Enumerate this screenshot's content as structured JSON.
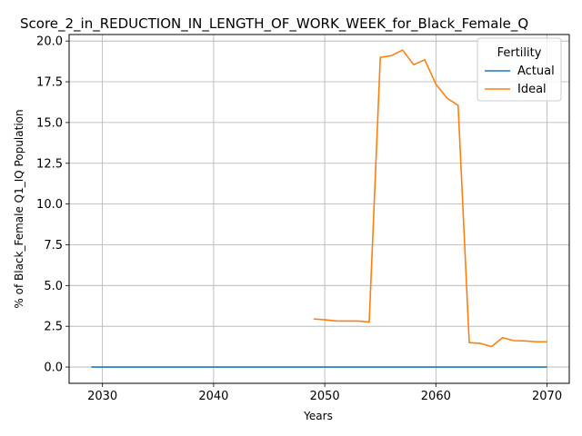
{
  "chart_data": {
    "type": "line",
    "title": "Score_2_in_REDUCTION_IN_LENGTH_OF_WORK_WEEK_for_Black_Female_Q",
    "xlabel": "Years",
    "ylabel": "% of Black_Female Q1_IQ Population",
    "xlim": [
      2027,
      2072
    ],
    "ylim": [
      -1.0,
      20.4
    ],
    "x_ticks": [
      2030,
      2040,
      2050,
      2060,
      2070
    ],
    "x_tick_labels": [
      "2030",
      "2040",
      "2050",
      "2060",
      "2070"
    ],
    "y_ticks": [
      0.0,
      2.5,
      5.0,
      7.5,
      10.0,
      12.5,
      15.0,
      17.5,
      20.0
    ],
    "y_tick_labels": [
      "0.0",
      "2.5",
      "5.0",
      "7.5",
      "10.0",
      "12.5",
      "15.0",
      "17.5",
      "20.0"
    ],
    "grid": true,
    "legend": {
      "title": "Fertility",
      "placement": "top-right"
    },
    "series": [
      {
        "name": "Actual",
        "color": "#1f77b4",
        "x": [
          2029,
          2070
        ],
        "y": [
          0.0,
          0.0
        ]
      },
      {
        "name": "Ideal",
        "color": "#ff7f0e",
        "x": [
          2049,
          2050,
          2051,
          2052,
          2053,
          2054,
          2055,
          2056,
          2057,
          2058,
          2059,
          2060,
          2061,
          2062,
          2063,
          2064,
          2065,
          2066,
          2067,
          2068,
          2069,
          2070
        ],
        "y": [
          2.95,
          2.9,
          2.83,
          2.82,
          2.82,
          2.76,
          19.0,
          19.1,
          19.45,
          18.55,
          18.85,
          17.35,
          16.5,
          16.05,
          1.5,
          1.45,
          1.25,
          1.8,
          1.62,
          1.6,
          1.55,
          1.55
        ]
      }
    ]
  }
}
